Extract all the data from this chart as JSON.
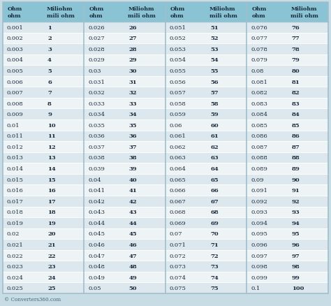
{
  "header_bg": "#8ac4d4",
  "row_bg_even": "#dde8ee",
  "row_bg_odd": "#eef3f6",
  "outer_bg": "#c8dce6",
  "header_text_color": "#1a2a3a",
  "data_text_color": "#1a2a3a",
  "col_divider_color": "#a0bfcc",
  "row_line_color": "#ffffff",
  "watermark": "© Converters360.com",
  "columns": [
    {
      "ohm_vals": [
        "0.001",
        "0.002",
        "0.003",
        "0.004",
        "0.005",
        "0.006",
        "0.007",
        "0.008",
        "0.009",
        "0.01",
        "0.011",
        "0.012",
        "0.013",
        "0.014",
        "0.015",
        "0.016",
        "0.017",
        "0.018",
        "0.019",
        "0.02",
        "0.021",
        "0.022",
        "0.023",
        "0.024",
        "0.025"
      ],
      "miliohm_vals": [
        "1",
        "2",
        "3",
        "4",
        "5",
        "6",
        "7",
        "8",
        "9",
        "10",
        "11",
        "12",
        "13",
        "14",
        "15",
        "16",
        "17",
        "18",
        "19",
        "20",
        "21",
        "22",
        "23",
        "24",
        "25"
      ]
    },
    {
      "ohm_vals": [
        "0.026",
        "0.027",
        "0.028",
        "0.029",
        "0.03",
        "0.031",
        "0.032",
        "0.033",
        "0.034",
        "0.035",
        "0.036",
        "0.037",
        "0.038",
        "0.039",
        "0.04",
        "0.041",
        "0.042",
        "0.043",
        "0.044",
        "0.045",
        "0.046",
        "0.047",
        "0.048",
        "0.049",
        "0.05"
      ],
      "miliohm_vals": [
        "26",
        "27",
        "28",
        "29",
        "30",
        "31",
        "32",
        "33",
        "34",
        "35",
        "36",
        "37",
        "38",
        "39",
        "40",
        "41",
        "42",
        "43",
        "44",
        "45",
        "46",
        "47",
        "48",
        "49",
        "50"
      ]
    },
    {
      "ohm_vals": [
        "0.051",
        "0.052",
        "0.053",
        "0.054",
        "0.055",
        "0.056",
        "0.057",
        "0.058",
        "0.059",
        "0.06",
        "0.061",
        "0.062",
        "0.063",
        "0.064",
        "0.065",
        "0.066",
        "0.067",
        "0.068",
        "0.069",
        "0.07",
        "0.071",
        "0.072",
        "0.073",
        "0.074",
        "0.075"
      ],
      "miliohm_vals": [
        "51",
        "52",
        "53",
        "54",
        "55",
        "56",
        "57",
        "58",
        "59",
        "60",
        "61",
        "62",
        "63",
        "64",
        "65",
        "66",
        "67",
        "68",
        "69",
        "70",
        "71",
        "72",
        "73",
        "74",
        "75"
      ]
    },
    {
      "ohm_vals": [
        "0.076",
        "0.077",
        "0.078",
        "0.079",
        "0.08",
        "0.081",
        "0.082",
        "0.083",
        "0.084",
        "0.085",
        "0.086",
        "0.087",
        "0.088",
        "0.089",
        "0.09",
        "0.091",
        "0.092",
        "0.093",
        "0.094",
        "0.095",
        "0.096",
        "0.097",
        "0.098",
        "0.099",
        "0.1"
      ],
      "miliohm_vals": [
        "76",
        "77",
        "78",
        "79",
        "80",
        "81",
        "82",
        "83",
        "84",
        "85",
        "86",
        "87",
        "88",
        "89",
        "90",
        "91",
        "92",
        "93",
        "94",
        "95",
        "96",
        "97",
        "98",
        "99",
        "100"
      ]
    }
  ]
}
